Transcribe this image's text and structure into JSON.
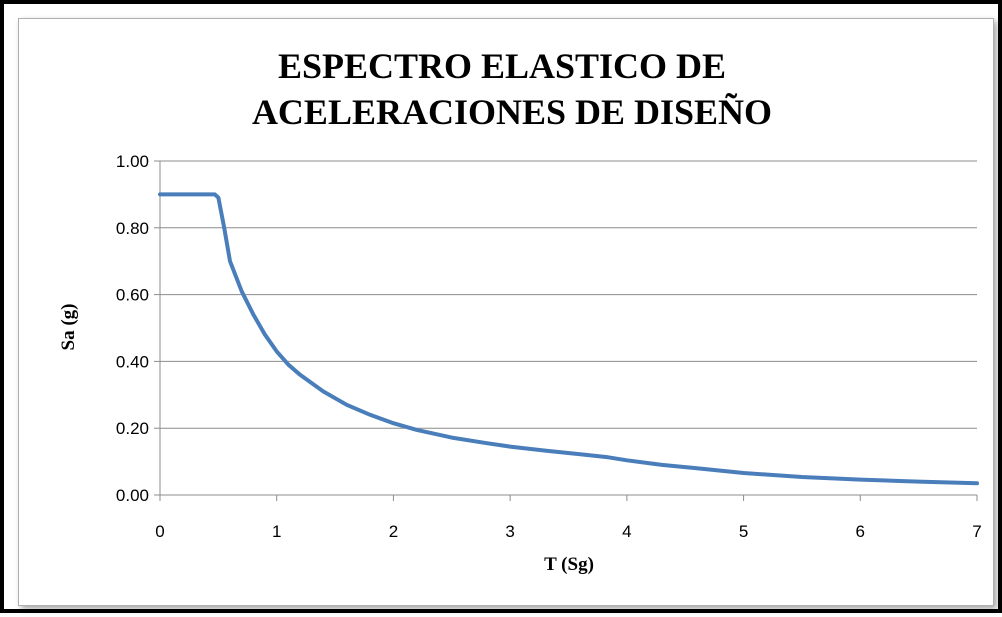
{
  "chart_data": {
    "type": "line",
    "title_lines": [
      "ESPECTRO ELASTICO DE",
      "ACELERACIONES  DE DISEÑO"
    ],
    "xlabel": "T (Sg)",
    "ylabel": "Sa (g)",
    "xlim": [
      0,
      7
    ],
    "ylim": [
      0,
      1
    ],
    "x_ticks": [
      "0",
      "1",
      "2",
      "3",
      "4",
      "5",
      "6",
      "7"
    ],
    "y_ticks": [
      "0.00",
      "0.20",
      "0.40",
      "0.60",
      "0.80",
      "1.00"
    ],
    "grid": "horizontal",
    "legend": "none",
    "line_color": "#4a7ebb",
    "series": [
      {
        "x": [
          0,
          0.1,
          0.2,
          0.3,
          0.4,
          0.47,
          0.5,
          0.55,
          0.6,
          0.7,
          0.8,
          0.9,
          1.0,
          1.1,
          1.2,
          1.4,
          1.6,
          1.8,
          2.0,
          2.2,
          2.5,
          2.8,
          3.0,
          3.3,
          3.6,
          3.84,
          4.0,
          4.3,
          4.6,
          5.0,
          5.5,
          6.0,
          6.5,
          7.0
        ],
        "values": [
          0.9,
          0.9,
          0.9,
          0.9,
          0.9,
          0.9,
          0.89,
          0.8,
          0.7,
          0.61,
          0.54,
          0.48,
          0.43,
          0.39,
          0.36,
          0.31,
          0.27,
          0.24,
          0.215,
          0.195,
          0.172,
          0.155,
          0.145,
          0.133,
          0.122,
          0.113,
          0.104,
          0.09,
          0.08,
          0.066,
          0.054,
          0.046,
          0.04,
          0.035
        ]
      }
    ]
  }
}
